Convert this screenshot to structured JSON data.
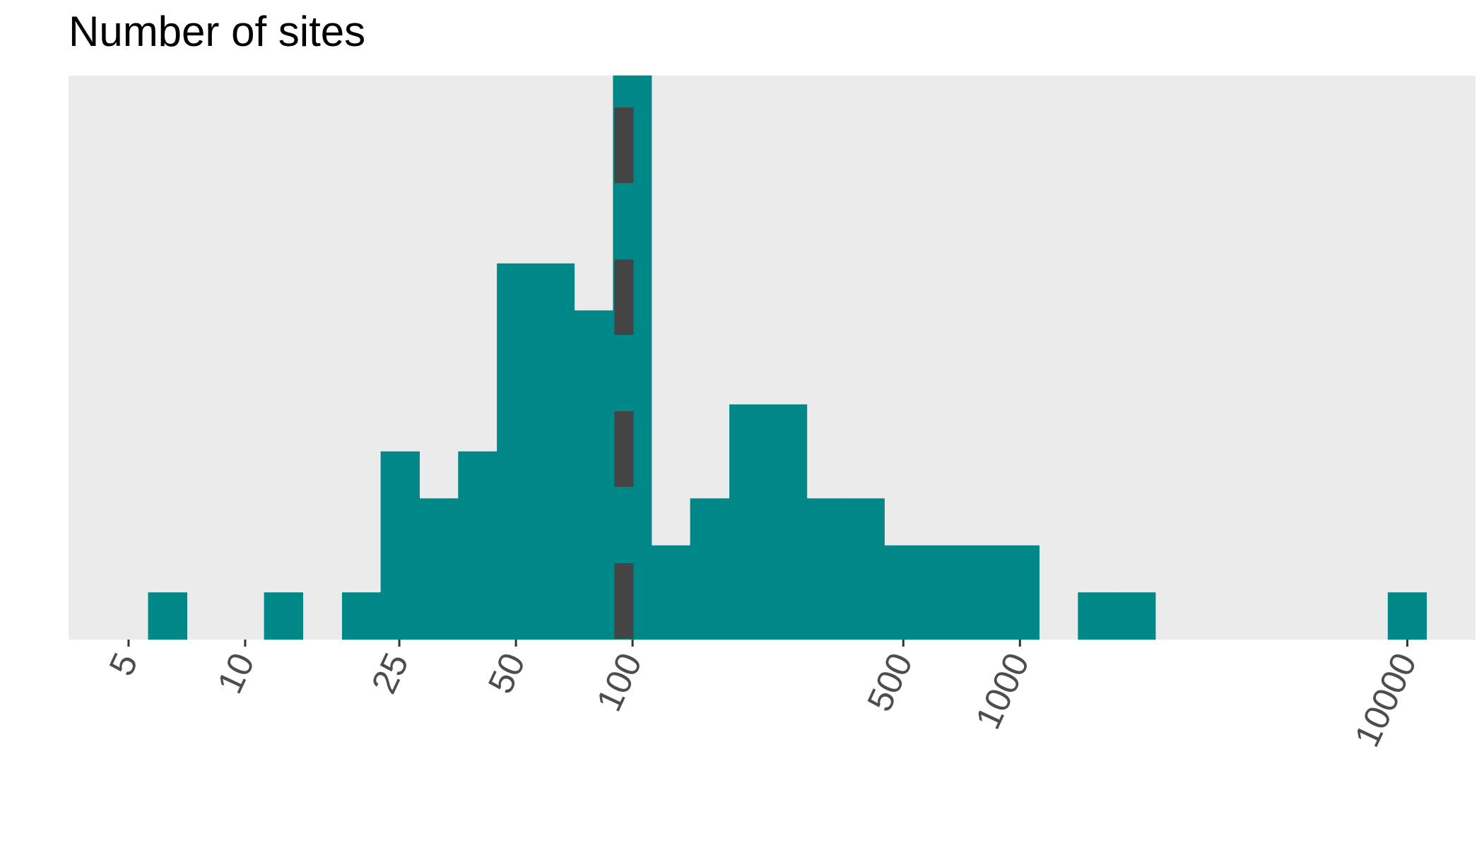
{
  "chart_data": {
    "type": "bar",
    "title": "Number of sites",
    "xlabel": "",
    "ylabel": "",
    "x_scale": "log10",
    "xlim": [
      3.5,
      15000
    ],
    "ylim": [
      0,
      12
    ],
    "x_ticks": [
      5,
      10,
      25,
      50,
      100,
      500,
      1000,
      10000
    ],
    "y_ticks_shown": false,
    "grid": false,
    "bins": [
      {
        "x0": 5.62,
        "x1": 7.08,
        "count": 1
      },
      {
        "x0": 11.2,
        "x1": 14.1,
        "count": 1
      },
      {
        "x0": 17.8,
        "x1": 22.4,
        "count": 1
      },
      {
        "x0": 22.4,
        "x1": 28.2,
        "count": 4
      },
      {
        "x0": 28.2,
        "x1": 35.5,
        "count": 3
      },
      {
        "x0": 35.5,
        "x1": 44.7,
        "count": 4
      },
      {
        "x0": 44.7,
        "x1": 56.2,
        "count": 8
      },
      {
        "x0": 56.2,
        "x1": 70.8,
        "count": 8
      },
      {
        "x0": 70.8,
        "x1": 89.1,
        "count": 7
      },
      {
        "x0": 89.1,
        "x1": 112,
        "count": 12
      },
      {
        "x0": 112,
        "x1": 141,
        "count": 2
      },
      {
        "x0": 141,
        "x1": 178,
        "count": 3
      },
      {
        "x0": 178,
        "x1": 224,
        "count": 5
      },
      {
        "x0": 224,
        "x1": 282,
        "count": 5
      },
      {
        "x0": 282,
        "x1": 355,
        "count": 3
      },
      {
        "x0": 355,
        "x1": 447,
        "count": 3
      },
      {
        "x0": 447,
        "x1": 562,
        "count": 2
      },
      {
        "x0": 562,
        "x1": 708,
        "count": 2
      },
      {
        "x0": 708,
        "x1": 891,
        "count": 2
      },
      {
        "x0": 891,
        "x1": 1122,
        "count": 2
      },
      {
        "x0": 1413,
        "x1": 1778,
        "count": 1
      },
      {
        "x0": 1778,
        "x1": 2239,
        "count": 1
      },
      {
        "x0": 8913,
        "x1": 11220,
        "count": 1
      }
    ],
    "reference_line": {
      "x": 95,
      "style": "dashed",
      "color": "#444444"
    },
    "colors": {
      "bar": "#008787",
      "panel": "#ebebeb",
      "tick_text": "#4d4d4d"
    }
  }
}
